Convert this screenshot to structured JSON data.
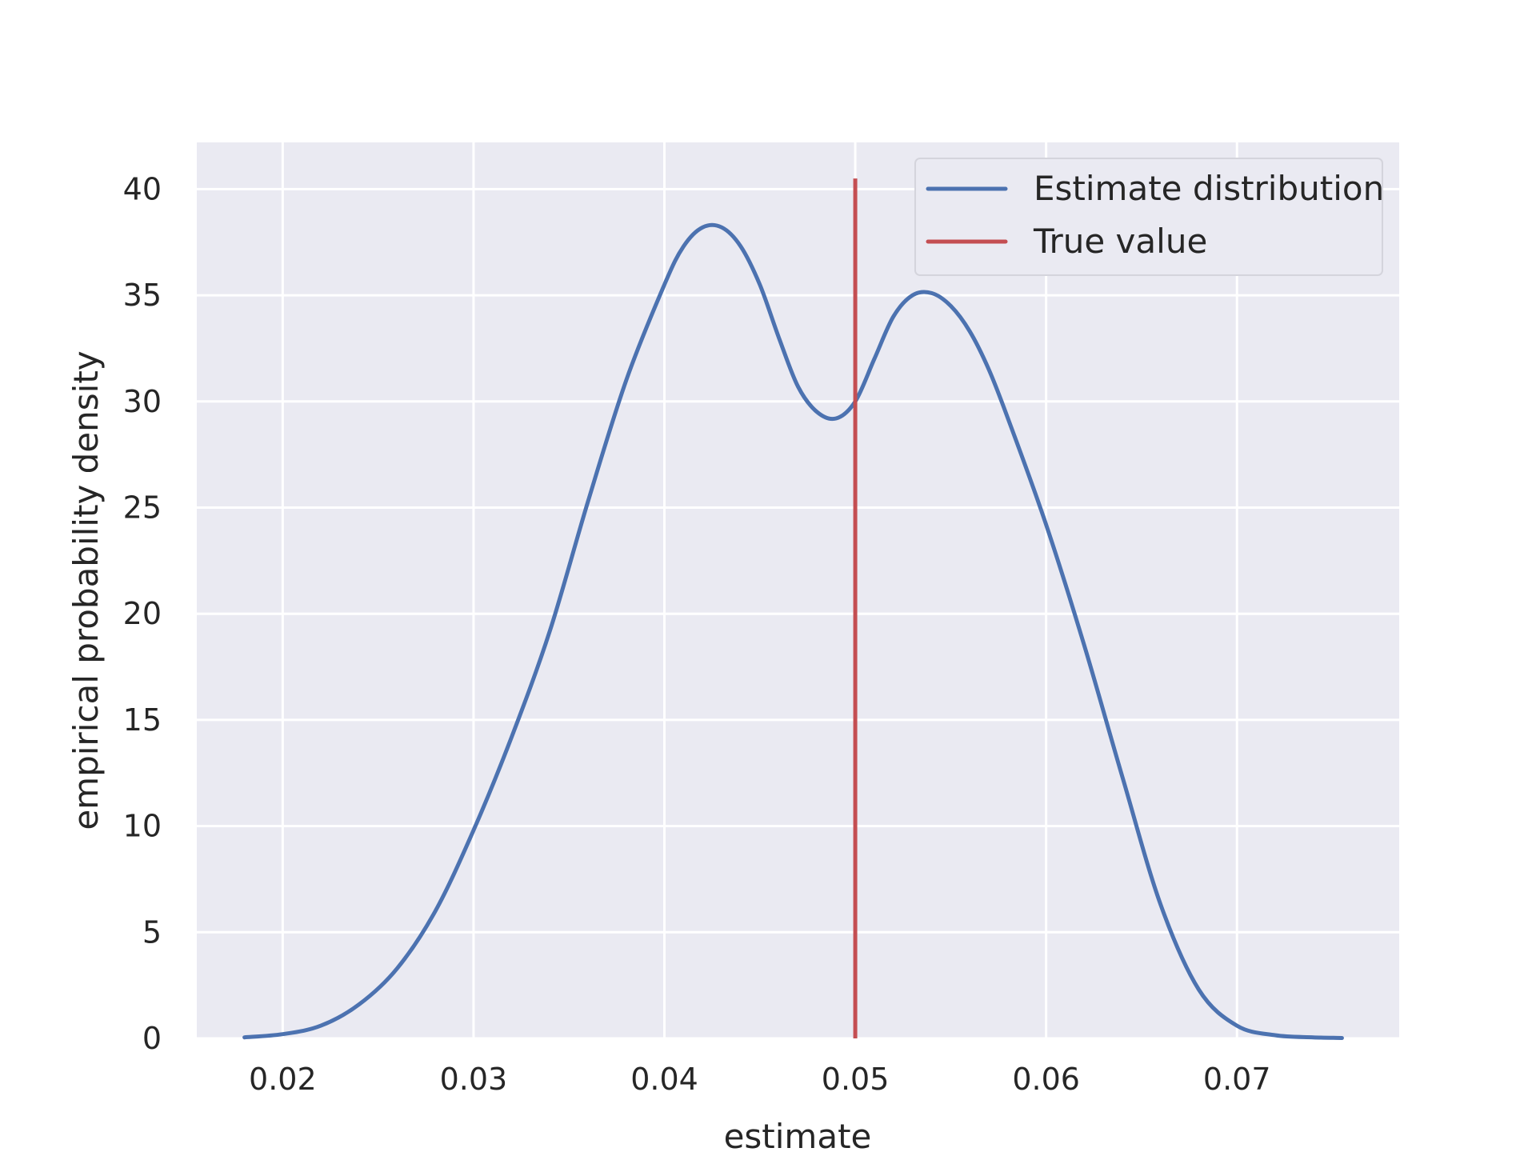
{
  "chart_data": {
    "type": "line",
    "title": "",
    "xlabel": "estimate",
    "ylabel": "empirical probability density",
    "xlim": [
      0.0155,
      0.0785
    ],
    "ylim": [
      0,
      42.2
    ],
    "xticks": [
      0.02,
      0.03,
      0.04,
      0.05,
      0.06,
      0.07
    ],
    "xtick_labels": [
      "0.02",
      "0.03",
      "0.04",
      "0.05",
      "0.06",
      "0.07"
    ],
    "yticks": [
      0,
      5,
      10,
      15,
      20,
      25,
      30,
      35,
      40
    ],
    "ytick_labels": [
      "0",
      "5",
      "10",
      "15",
      "20",
      "25",
      "30",
      "35",
      "40"
    ],
    "grid": true,
    "legend_position": "top-right",
    "colors": {
      "background": "#eaeaf2",
      "grid": "#ffffff",
      "estimate": "#4c72b0",
      "true_value": "#c44e52"
    },
    "series": [
      {
        "name": "Estimate distribution",
        "kind": "curve",
        "x": [
          0.018,
          0.02,
          0.022,
          0.024,
          0.026,
          0.028,
          0.03,
          0.032,
          0.034,
          0.036,
          0.038,
          0.04,
          0.041,
          0.042,
          0.043,
          0.044,
          0.045,
          0.046,
          0.047,
          0.048,
          0.049,
          0.05,
          0.051,
          0.052,
          0.053,
          0.054,
          0.055,
          0.056,
          0.057,
          0.058,
          0.06,
          0.062,
          0.064,
          0.066,
          0.068,
          0.07,
          0.072,
          0.074,
          0.0755
        ],
        "y": [
          0.05,
          0.2,
          0.6,
          1.6,
          3.3,
          6.0,
          9.8,
          14.2,
          19.2,
          25.3,
          31.0,
          35.5,
          37.3,
          38.2,
          38.2,
          37.3,
          35.5,
          33.0,
          30.7,
          29.5,
          29.2,
          30.0,
          32.0,
          34.0,
          35.0,
          35.1,
          34.5,
          33.3,
          31.5,
          29.2,
          24.2,
          18.5,
          12.3,
          6.3,
          2.3,
          0.6,
          0.15,
          0.05,
          0.02
        ]
      },
      {
        "name": "True value",
        "kind": "vline",
        "x": 0.05,
        "y": [
          0,
          40.5
        ]
      }
    ]
  }
}
